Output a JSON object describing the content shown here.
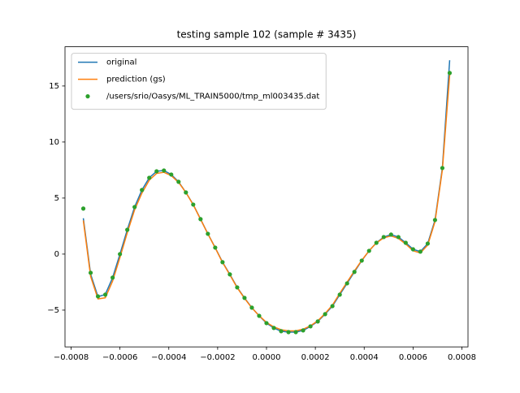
{
  "chart_data": {
    "type": "line",
    "title": "testing sample 102 (sample # 3435)",
    "x": [
      -0.00075,
      -0.00072,
      -0.00069,
      -0.00066,
      -0.00063,
      -0.0006,
      -0.00057,
      -0.00054,
      -0.00051,
      -0.00048,
      -0.00045,
      -0.00042,
      -0.00039,
      -0.00036,
      -0.00033,
      -0.0003,
      -0.00027,
      -0.00024,
      -0.00021,
      -0.00018,
      -0.00015,
      -0.00012,
      -9e-05,
      -6e-05,
      -3e-05,
      0,
      3e-05,
      6e-05,
      9e-05,
      0.00012,
      0.00015,
      0.00018,
      0.00021,
      0.00024,
      0.00027,
      0.0003,
      0.00033,
      0.00036,
      0.00039,
      0.00042,
      0.00045,
      0.00048,
      0.00051,
      0.00054,
      0.00057,
      0.0006,
      0.00063,
      0.00066,
      0.00069,
      0.00072,
      0.00075
    ],
    "series": [
      {
        "name": "original",
        "color": "#1f77b4",
        "markers": false,
        "values": [
          3.2,
          -1.8,
          -3.8,
          -3.6,
          -2.1,
          0.0,
          2.17,
          4.2,
          5.72,
          6.81,
          7.39,
          7.46,
          7.1,
          6.45,
          5.5,
          4.42,
          3.12,
          1.81,
          0.58,
          -0.72,
          -1.81,
          -2.97,
          -3.91,
          -4.78,
          -5.51,
          -6.16,
          -6.59,
          -6.88,
          -6.96,
          -6.96,
          -6.81,
          -6.45,
          -6.01,
          -5.36,
          -4.64,
          -3.62,
          -2.61,
          -1.59,
          -0.58,
          0.29,
          1.01,
          1.52,
          1.74,
          1.52,
          1.01,
          0.43,
          0.22,
          0.94,
          3.04,
          7.68,
          17.3
        ]
      },
      {
        "name": "prediction (gs)",
        "color": "#ff7f0e",
        "markers": false,
        "values": [
          3.0,
          -2.0,
          -4.0,
          -3.9,
          -2.4,
          -0.3,
          1.9,
          3.95,
          5.45,
          6.6,
          7.2,
          7.3,
          7.0,
          6.4,
          5.5,
          4.4,
          3.1,
          1.8,
          0.55,
          -0.75,
          -1.85,
          -3.0,
          -3.95,
          -4.8,
          -5.5,
          -6.1,
          -6.5,
          -6.75,
          -6.85,
          -6.85,
          -6.7,
          -6.4,
          -5.95,
          -5.3,
          -4.55,
          -3.5,
          -2.5,
          -1.5,
          -0.55,
          0.3,
          1.0,
          1.45,
          1.62,
          1.4,
          0.9,
          0.3,
          0.1,
          0.8,
          2.9,
          7.5,
          16.0
        ]
      },
      {
        "name": "/users/srio/Oasys/ML_TRAIN5000/tmp_ml003435.dat",
        "color": "#2ca02c",
        "markers": true,
        "values": [
          4.06,
          -1.67,
          -3.77,
          -3.62,
          -2.1,
          0.0,
          2.17,
          4.2,
          5.72,
          6.81,
          7.39,
          7.46,
          7.1,
          6.45,
          5.5,
          4.42,
          3.12,
          1.81,
          0.58,
          -0.72,
          -1.81,
          -2.97,
          -3.91,
          -4.78,
          -5.51,
          -6.16,
          -6.59,
          -6.88,
          -6.96,
          -6.96,
          -6.81,
          -6.45,
          -6.01,
          -5.36,
          -4.64,
          -3.62,
          -2.61,
          -1.59,
          -0.58,
          0.29,
          1.01,
          1.52,
          1.74,
          1.52,
          1.01,
          0.43,
          0.22,
          0.94,
          3.04,
          7.68,
          16.16
        ]
      }
    ],
    "xlim": [
      -0.000825,
      0.000825
    ],
    "ylim": [
      -8.28,
      18.5
    ],
    "xticks": [
      {
        "value": -0.0008,
        "label": "−0.0008"
      },
      {
        "value": -0.0006,
        "label": "−0.0006"
      },
      {
        "value": -0.0004,
        "label": "−0.0004"
      },
      {
        "value": -0.0002,
        "label": "−0.0002"
      },
      {
        "value": 0,
        "label": "0.0000"
      },
      0.0002,
      0.0004,
      0.0006,
      0.0008
    ],
    "yticks": [
      {
        "value": -5,
        "label": "−5"
      },
      0,
      5,
      10,
      15
    ],
    "legend": "upper left"
  }
}
